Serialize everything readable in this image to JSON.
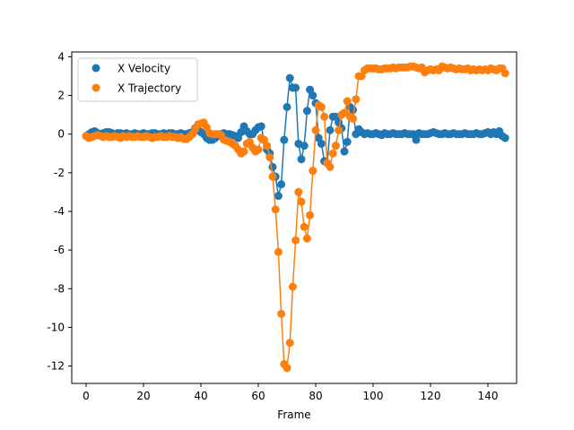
{
  "chart_data": {
    "type": "line",
    "title": "",
    "xlabel": "Frame",
    "ylabel": "",
    "xlim": [
      -5,
      150
    ],
    "ylim": [
      -12.9,
      4.25
    ],
    "xticks": [
      0,
      20,
      40,
      60,
      80,
      100,
      120,
      140
    ],
    "yticks": [
      4,
      2,
      0,
      -2,
      -4,
      -6,
      -8,
      -10,
      -12
    ],
    "grid": false,
    "legend_position": "top-left",
    "colors": {
      "x_velocity": "#1f77b4",
      "x_trajectory": "#ff7f0e"
    },
    "series": [
      {
        "name": "X Velocity",
        "key": "x_velocity",
        "x": [
          0,
          1,
          2,
          3,
          4,
          5,
          6,
          7,
          8,
          9,
          10,
          11,
          12,
          13,
          14,
          15,
          16,
          17,
          18,
          19,
          20,
          21,
          22,
          23,
          24,
          25,
          26,
          27,
          28,
          29,
          30,
          31,
          32,
          33,
          34,
          35,
          36,
          37,
          38,
          39,
          40,
          41,
          42,
          43,
          44,
          45,
          46,
          47,
          48,
          49,
          50,
          51,
          52,
          53,
          54,
          55,
          56,
          57,
          58,
          59,
          60,
          61,
          62,
          63,
          64,
          65,
          66,
          67,
          68,
          69,
          70,
          71,
          72,
          73,
          74,
          75,
          76,
          77,
          78,
          79,
          80,
          81,
          82,
          83,
          84,
          85,
          86,
          87,
          88,
          89,
          90,
          91,
          92,
          93,
          94,
          95,
          96,
          97,
          98,
          99,
          100,
          101,
          102,
          103,
          104,
          105,
          106,
          107,
          108,
          109,
          110,
          111,
          112,
          113,
          114,
          115,
          116,
          117,
          118,
          119,
          120,
          121,
          122,
          123,
          124,
          125,
          126,
          127,
          128,
          129,
          130,
          131,
          132,
          133,
          134,
          135,
          136,
          137,
          138,
          139,
          140,
          141,
          142,
          143,
          144,
          145,
          146
        ],
        "y": [
          -0.1,
          0.0,
          0.1,
          0.15,
          0.05,
          0.0,
          0.05,
          0.1,
          0.1,
          0.05,
          0.0,
          0.05,
          0.05,
          0.0,
          0.05,
          0.0,
          0.0,
          0.05,
          0.0,
          0.0,
          0.05,
          0.0,
          0.0,
          0.05,
          0.05,
          0.0,
          0.0,
          0.05,
          0.0,
          0.05,
          0.05,
          0.0,
          0.0,
          0.05,
          0.0,
          0.0,
          0.05,
          0.1,
          0.3,
          0.2,
          0.1,
          0.0,
          -0.2,
          -0.3,
          -0.3,
          -0.2,
          -0.1,
          0.0,
          0.05,
          0.0,
          0.0,
          -0.05,
          -0.1,
          -0.2,
          0.1,
          0.4,
          0.15,
          0.0,
          0.0,
          0.2,
          0.35,
          0.4,
          -0.3,
          -0.8,
          -1.0,
          -1.7,
          -2.2,
          -3.2,
          -2.6,
          -0.3,
          1.4,
          2.9,
          2.4,
          2.4,
          -0.5,
          -1.3,
          -0.6,
          1.2,
          2.3,
          2.0,
          1.6,
          -0.2,
          -0.5,
          -1.4,
          -1.5,
          0.2,
          0.9,
          0.9,
          0.6,
          0.3,
          -0.9,
          -0.4,
          1.4,
          1.25,
          0.0,
          0.25,
          0.1,
          0.0,
          0.05,
          0.0,
          0.0,
          0.05,
          0.0,
          -0.05,
          0.05,
          0.0,
          0.0,
          0.05,
          0.0,
          0.0,
          0.0,
          0.05,
          0.0,
          0.0,
          0.0,
          -0.3,
          0.05,
          0.0,
          0.0,
          0.0,
          0.05,
          0.1,
          0.05,
          0.0,
          0.0,
          0.05,
          0.0,
          0.0,
          0.05,
          0.0,
          0.0,
          0.0,
          0.05,
          0.0,
          0.0,
          0.0,
          0.05,
          0.0,
          0.0,
          0.05,
          0.1,
          0.0,
          0.1,
          0.0,
          0.15,
          -0.1,
          -0.2
        ]
      },
      {
        "name": "X Trajectory",
        "key": "x_trajectory",
        "x": [
          0,
          1,
          2,
          3,
          4,
          5,
          6,
          7,
          8,
          9,
          10,
          11,
          12,
          13,
          14,
          15,
          16,
          17,
          18,
          19,
          20,
          21,
          22,
          23,
          24,
          25,
          26,
          27,
          28,
          29,
          30,
          31,
          32,
          33,
          34,
          35,
          36,
          37,
          38,
          39,
          40,
          41,
          42,
          43,
          44,
          45,
          46,
          47,
          48,
          49,
          50,
          51,
          52,
          53,
          54,
          55,
          56,
          57,
          58,
          59,
          60,
          61,
          62,
          63,
          64,
          65,
          66,
          67,
          68,
          69,
          70,
          71,
          72,
          73,
          74,
          75,
          76,
          77,
          78,
          79,
          80,
          81,
          82,
          83,
          84,
          85,
          86,
          87,
          88,
          89,
          90,
          91,
          92,
          93,
          94,
          95,
          96,
          97,
          98,
          99,
          100,
          101,
          102,
          103,
          104,
          105,
          106,
          107,
          108,
          109,
          110,
          111,
          112,
          113,
          114,
          115,
          116,
          117,
          118,
          119,
          120,
          121,
          122,
          123,
          124,
          125,
          126,
          127,
          128,
          129,
          130,
          131,
          132,
          133,
          134,
          135,
          136,
          137,
          138,
          139,
          140,
          141,
          142,
          143,
          144,
          145,
          146
        ],
        "y": [
          -0.1,
          -0.2,
          -0.15,
          -0.1,
          -0.05,
          -0.1,
          -0.15,
          -0.1,
          -0.15,
          -0.15,
          -0.1,
          -0.15,
          -0.2,
          -0.1,
          -0.15,
          -0.1,
          -0.15,
          -0.15,
          -0.1,
          -0.15,
          -0.15,
          -0.1,
          -0.15,
          -0.2,
          -0.15,
          -0.15,
          -0.1,
          -0.15,
          -0.15,
          -0.1,
          -0.15,
          -0.15,
          -0.2,
          -0.15,
          -0.25,
          -0.25,
          -0.15,
          0.0,
          0.25,
          0.5,
          0.55,
          0.6,
          0.35,
          0.05,
          0.0,
          0.0,
          0.0,
          -0.05,
          -0.3,
          -0.35,
          -0.4,
          -0.5,
          -0.6,
          -0.8,
          -1.0,
          -0.9,
          -0.5,
          -0.4,
          -0.7,
          -0.9,
          -0.8,
          -0.2,
          -0.3,
          -0.6,
          -1.2,
          -2.2,
          -3.9,
          -6.1,
          -9.3,
          -11.9,
          -12.1,
          -10.8,
          -7.9,
          -5.5,
          -3.0,
          -3.5,
          -4.8,
          -5.4,
          -4.2,
          -1.9,
          0.2,
          1.5,
          1.4,
          0.9,
          -1.5,
          -1.7,
          -1.0,
          -0.6,
          0.2,
          1.0,
          1.1,
          1.7,
          0.9,
          0.8,
          1.8,
          3.0,
          3.0,
          3.3,
          3.4,
          3.4,
          3.4,
          3.4,
          3.35,
          3.35,
          3.4,
          3.4,
          3.4,
          3.45,
          3.4,
          3.45,
          3.45,
          3.45,
          3.45,
          3.5,
          3.5,
          3.45,
          3.4,
          3.45,
          3.2,
          3.3,
          3.35,
          3.3,
          3.35,
          3.3,
          3.5,
          3.45,
          3.4,
          3.45,
          3.4,
          3.35,
          3.4,
          3.35,
          3.35,
          3.4,
          3.3,
          3.35,
          3.3,
          3.35,
          3.3,
          3.35,
          3.3,
          3.4,
          3.35,
          3.3,
          3.4,
          3.4,
          3.15
        ]
      }
    ]
  }
}
